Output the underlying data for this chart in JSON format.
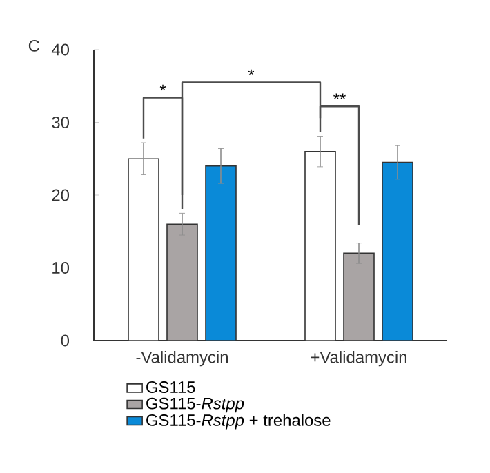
{
  "chart_data": {
    "type": "bar",
    "categories": [
      "-Validamycin",
      "+Validamycin"
    ],
    "series": [
      {
        "name": "GS115",
        "color": "#ffffff",
        "values": [
          25,
          26
        ],
        "errors": [
          2.2,
          2.1
        ]
      },
      {
        "name": "GS115-*Rstpp*",
        "color": "#a9a4a4",
        "values": [
          16,
          12
        ],
        "errors": [
          1.5,
          1.4
        ]
      },
      {
        "name": "GS115-*Rstpp* + trehalose",
        "color": "#0a8ad8",
        "values": [
          24,
          24.5
        ],
        "errors": [
          2.4,
          2.3
        ]
      }
    ],
    "ylim": [
      0,
      40
    ],
    "yticks": [
      0,
      10,
      20,
      30,
      40
    ],
    "annotations": [
      "C",
      "*",
      "*",
      "**"
    ],
    "legend": "bottom"
  }
}
